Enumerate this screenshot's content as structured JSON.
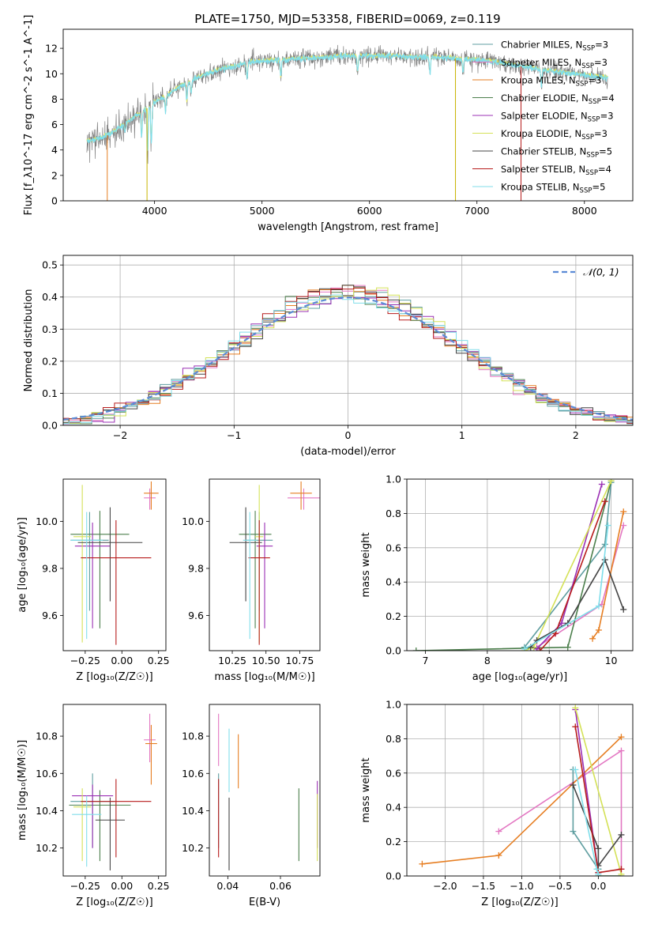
{
  "figure": {
    "title": "PLATE=1750, MJD=53358, FIBERID=0069, z=0.119"
  },
  "series_styles": [
    {
      "name": "Chabrier MILES",
      "nssp": "3",
      "color": "#5f9ea0"
    },
    {
      "name": "Salpeter MILES",
      "nssp": "3",
      "color": "#e377c2"
    },
    {
      "name": "Kroupa MILES",
      "nssp": "3",
      "color": "#e67e22"
    },
    {
      "name": "Chabrier ELODIE",
      "nssp": "4",
      "color": "#4c7f4c"
    },
    {
      "name": "Salpeter ELODIE",
      "nssp": "3",
      "color": "#9b30b4"
    },
    {
      "name": "Kroupa ELODIE",
      "nssp": "3",
      "color": "#d4e157"
    },
    {
      "name": "Chabrier STELIB",
      "nssp": "5",
      "color": "#444444"
    },
    {
      "name": "Salpeter STELIB",
      "nssp": "4",
      "color": "#b71c1c"
    },
    {
      "name": "Kroupa STELIB",
      "nssp": "5",
      "color": "#80deea"
    }
  ],
  "chart_data": [
    {
      "id": "spectrum",
      "type": "line",
      "title": "PLATE=1750, MJD=53358, FIBERID=0069, z=0.119",
      "xlabel": "wavelength [Angstrom, rest frame]",
      "ylabel": "Flux [f_λ10^-17 erg cm^-2 s^-1 A^-1]",
      "xlim": [
        3150,
        8450
      ],
      "ylim": [
        0,
        13.5
      ],
      "xticks": [
        4000,
        5000,
        6000,
        7000,
        8000
      ],
      "yticks": [
        0,
        2,
        4,
        6,
        8,
        10,
        12
      ],
      "legend_position": "top-right",
      "continuum_x": [
        3370,
        3450,
        3550,
        3650,
        3750,
        3850,
        3950,
        4000,
        4100,
        4200,
        4300,
        4400,
        4500,
        4600,
        4700,
        4800,
        4900,
        5000,
        5200,
        5400,
        5600,
        5800,
        6000,
        6200,
        6400,
        6600,
        6800,
        7000,
        7200,
        7400,
        7600,
        7800,
        8000,
        8200
      ],
      "continuum_y": [
        4.7,
        4.8,
        5.1,
        5.6,
        6.2,
        6.8,
        7.4,
        7.8,
        8.2,
        8.8,
        9.3,
        9.7,
        10.0,
        10.3,
        10.5,
        10.7,
        10.9,
        11.0,
        11.1,
        11.2,
        11.3,
        11.4,
        11.4,
        11.4,
        11.3,
        11.3,
        11.2,
        11.1,
        10.9,
        10.6,
        10.3,
        10.1,
        9.9,
        9.7
      ],
      "data_range": [
        3370,
        8220
      ]
    },
    {
      "id": "residuals",
      "type": "bar",
      "xlabel": "(data-model)/error",
      "ylabel": "Normed distribution",
      "xlim": [
        -2.5,
        2.5
      ],
      "ylim": [
        0,
        0.53
      ],
      "xticks": [
        -2,
        -1,
        0,
        1,
        2
      ],
      "yticks": [
        0.0,
        0.1,
        0.2,
        0.3,
        0.4,
        0.5
      ],
      "reference_curve": "N(0,1)",
      "legend_label": "𝒩(0, 1)",
      "legend_position": "top-right",
      "bin_width": 0.1,
      "grid": true
    },
    {
      "id": "age_vs_Z",
      "type": "scatter",
      "xlabel": "Z [log₁₀(Z/Z☉)]",
      "ylabel": "age  [log₁₀(age/yr)]",
      "xlim": [
        -0.4,
        0.3
      ],
      "ylim": [
        9.45,
        10.18
      ],
      "xticks": [
        -0.25,
        0.0,
        0.25
      ],
      "yticks": [
        9.6,
        9.8,
        10.0
      ],
      "points": [
        {
          "x": -0.22,
          "y": 9.92,
          "xerr": 0.13,
          "yerr": [
            0.3,
            0.12
          ]
        },
        {
          "x": 0.19,
          "y": 10.1,
          "xerr": 0.04,
          "yerr": [
            0.05,
            0.04
          ]
        },
        {
          "x": 0.2,
          "y": 10.12,
          "xerr": 0.05,
          "yerr": [
            0.07,
            0.05
          ]
        },
        {
          "x": -0.15,
          "y": 9.945,
          "xerr": 0.2,
          "yerr": [
            0.4,
            0.1
          ]
        },
        {
          "x": -0.2,
          "y": 9.895,
          "xerr": 0.12,
          "yerr": [
            0.35,
            0.1
          ]
        },
        {
          "x": -0.27,
          "y": 9.935,
          "xerr": 0.06,
          "yerr": [
            0.45,
            0.22
          ]
        },
        {
          "x": -0.08,
          "y": 9.91,
          "xerr": 0.22,
          "yerr": [
            0.25,
            0.15
          ]
        },
        {
          "x": -0.04,
          "y": 9.845,
          "xerr": 0.24,
          "yerr": [
            0.37,
            0.16
          ]
        },
        {
          "x": -0.24,
          "y": 9.92,
          "xerr": 0.11,
          "yerr": [
            0.42,
            0.12
          ]
        }
      ]
    },
    {
      "id": "age_vs_mass",
      "type": "scatter",
      "xlabel": "mass [log₁₀(M/M☉)]",
      "ylabel": "",
      "xlim": [
        10.08,
        10.9
      ],
      "ylim": [
        9.45,
        10.18
      ],
      "xticks": [
        10.25,
        10.5,
        10.75
      ],
      "yticks": [
        9.6,
        9.8,
        10.0
      ],
      "points": [
        {
          "x": 10.45,
          "y": 9.92,
          "xerr": 0.1,
          "yerr": [
            0.3,
            0.12
          ]
        },
        {
          "x": 10.78,
          "y": 10.1,
          "xerr": 0.12,
          "yerr": [
            0.05,
            0.04
          ]
        },
        {
          "x": 10.76,
          "y": 10.12,
          "xerr": 0.08,
          "yerr": [
            0.07,
            0.05
          ]
        },
        {
          "x": 10.42,
          "y": 9.945,
          "xerr": 0.12,
          "yerr": [
            0.4,
            0.1
          ]
        },
        {
          "x": 10.49,
          "y": 9.895,
          "xerr": 0.06,
          "yerr": [
            0.35,
            0.1
          ]
        },
        {
          "x": 10.45,
          "y": 9.935,
          "xerr": 0.03,
          "yerr": [
            0.45,
            0.22
          ]
        },
        {
          "x": 10.35,
          "y": 9.91,
          "xerr": 0.12,
          "yerr": [
            0.25,
            0.15
          ]
        },
        {
          "x": 10.45,
          "y": 9.845,
          "xerr": 0.08,
          "yerr": [
            0.37,
            0.16
          ]
        },
        {
          "x": 10.38,
          "y": 9.92,
          "xerr": 0.05,
          "yerr": [
            0.42,
            0.12
          ]
        }
      ]
    },
    {
      "id": "mass_vs_Z",
      "type": "scatter",
      "xlabel": "Z [log₁₀(Z/Z☉)]",
      "ylabel": "mass [log₁₀(M/M☉)]",
      "xlim": [
        -0.4,
        0.3
      ],
      "ylim": [
        10.05,
        10.97
      ],
      "xticks": [
        -0.25,
        0.0,
        0.25
      ],
      "yticks": [
        10.2,
        10.4,
        10.6,
        10.8
      ],
      "points": [
        {
          "x": -0.2,
          "y": 10.45,
          "xerr": 0.15,
          "yerr": [
            0.25,
            0.15
          ]
        },
        {
          "x": 0.19,
          "y": 10.78,
          "xerr": 0.04,
          "yerr": [
            0.12,
            0.14
          ]
        },
        {
          "x": 0.2,
          "y": 10.76,
          "xerr": 0.04,
          "yerr": [
            0.22,
            0.1
          ]
        },
        {
          "x": -0.15,
          "y": 10.43,
          "xerr": 0.21,
          "yerr": [
            0.3,
            0.08
          ]
        },
        {
          "x": -0.2,
          "y": 10.48,
          "xerr": 0.14,
          "yerr": [
            0.28,
            0.06
          ]
        },
        {
          "x": -0.27,
          "y": 10.42,
          "xerr": 0.06,
          "yerr": [
            0.29,
            0.1
          ]
        },
        {
          "x": -0.08,
          "y": 10.35,
          "xerr": 0.1,
          "yerr": [
            0.27,
            0.12
          ]
        },
        {
          "x": -0.04,
          "y": 10.45,
          "xerr": 0.24,
          "yerr": [
            0.3,
            0.12
          ]
        },
        {
          "x": -0.24,
          "y": 10.38,
          "xerr": 0.1,
          "yerr": [
            0.28,
            0.1
          ]
        }
      ]
    },
    {
      "id": "mass_vs_EBV",
      "type": "scatter",
      "xlabel": "E(B-V)",
      "ylabel": "",
      "xlim": [
        0.033,
        0.075
      ],
      "ylim": [
        10.05,
        10.97
      ],
      "xticks": [
        0.04,
        0.06
      ],
      "yticks": [
        10.2,
        10.4,
        10.6,
        10.8
      ],
      "points": [
        {
          "x": 0.0365,
          "y": 10.45,
          "xerr": 0,
          "yerr": [
            0.25,
            0.15
          ]
        },
        {
          "x": 0.0365,
          "y": 10.78,
          "xerr": 0,
          "yerr": [
            0.14,
            0.14
          ]
        },
        {
          "x": 0.044,
          "y": 10.67,
          "xerr": 0,
          "yerr": [
            0.15,
            0.14
          ]
        },
        {
          "x": 0.067,
          "y": 10.33,
          "xerr": 0,
          "yerr": [
            0.2,
            0.19
          ]
        },
        {
          "x": 0.074,
          "y": 10.48,
          "xerr": 0,
          "yerr": [
            0.28,
            0.08
          ]
        },
        {
          "x": 0.074,
          "y": 10.31,
          "xerr": 0,
          "yerr": [
            0.18,
            0.18
          ]
        },
        {
          "x": 0.0405,
          "y": 10.35,
          "xerr": 0,
          "yerr": [
            0.27,
            0.12
          ]
        },
        {
          "x": 0.0365,
          "y": 10.45,
          "xerr": 0,
          "yerr": [
            0.3,
            0.12
          ]
        },
        {
          "x": 0.0405,
          "y": 10.66,
          "xerr": 0,
          "yerr": [
            0.16,
            0.18
          ]
        }
      ]
    },
    {
      "id": "weight_vs_age",
      "type": "line",
      "xlabel": "age  [log₁₀(age/yr)]",
      "ylabel": "mass weight",
      "xlim": [
        6.7,
        10.35
      ],
      "ylim": [
        0,
        1.0
      ],
      "xticks": [
        7,
        8,
        9,
        10
      ],
      "yticks": [
        0.0,
        0.2,
        0.4,
        0.6,
        0.8,
        1.0
      ],
      "grid": true,
      "series": [
        {
          "x": [
            8.6,
            9.9,
            10.0
          ],
          "y": [
            0.02,
            0.62,
            0.98
          ]
        },
        {
          "x": [
            8.8,
            9.85,
            10.2
          ],
          "y": [
            0.02,
            0.27,
            0.73
          ]
        },
        {
          "x": [
            9.7,
            9.8,
            10.2
          ],
          "y": [
            0.07,
            0.12,
            0.81
          ]
        },
        {
          "x": [
            6.85,
            9.3,
            10.0
          ],
          "y": [
            0.0,
            0.02,
            0.99
          ]
        },
        {
          "x": [
            8.8,
            9.2,
            9.85
          ],
          "y": [
            0.01,
            0.16,
            0.97
          ]
        },
        {
          "x": [
            8.6,
            8.75,
            10.0
          ],
          "y": [
            0.0,
            0.02,
            0.99
          ]
        },
        {
          "x": [
            8.7,
            8.8,
            9.3,
            9.9,
            10.2
          ],
          "y": [
            0.02,
            0.06,
            0.16,
            0.53,
            0.24
          ]
        },
        {
          "x": [
            8.85,
            9.1,
            9.9
          ],
          "y": [
            0.0,
            0.1,
            0.87
          ]
        },
        {
          "x": [
            8.6,
            9.8,
            9.95
          ],
          "y": [
            0.01,
            0.26,
            0.73
          ]
        }
      ]
    },
    {
      "id": "weight_vs_Z",
      "type": "line",
      "xlabel": "Z [log₁₀(Z/Z☉)]",
      "ylabel": "mass weight",
      "xlim": [
        -2.5,
        0.45
      ],
      "ylim": [
        0,
        1.0
      ],
      "xticks": [
        -2.0,
        -1.5,
        -1.0,
        -0.5,
        0.0
      ],
      "yticks": [
        0.0,
        0.2,
        0.4,
        0.6,
        0.8,
        1.0
      ],
      "grid": true,
      "series": [
        {
          "x": [
            -0.33,
            -0.33,
            0.0,
            0.0
          ],
          "y": [
            0.62,
            0.26,
            0.04,
            0.04
          ]
        },
        {
          "x": [
            -1.3,
            0.3,
            0.3
          ],
          "y": [
            0.26,
            0.73,
            0.04
          ]
        },
        {
          "x": [
            -2.3,
            -1.3,
            0.3
          ],
          "y": [
            0.07,
            0.12,
            0.81
          ]
        },
        {
          "x": [
            0.0,
            0.3
          ],
          "y": [
            0.0,
            0.0
          ]
        },
        {
          "x": [
            -0.3,
            0.0
          ],
          "y": [
            0.97,
            0.02
          ]
        },
        {
          "x": [
            -0.3,
            0.3
          ],
          "y": [
            0.98,
            0.01
          ]
        },
        {
          "x": [
            -0.33,
            0.0,
            0.0,
            0.3
          ],
          "y": [
            0.53,
            0.16,
            0.06,
            0.24
          ]
        },
        {
          "x": [
            -0.3,
            0.0,
            0.3
          ],
          "y": [
            0.87,
            0.02,
            0.04
          ]
        },
        {
          "x": [
            -0.3,
            -0.02,
            0.0
          ],
          "y": [
            0.62,
            0.04,
            0.01
          ]
        }
      ]
    }
  ]
}
